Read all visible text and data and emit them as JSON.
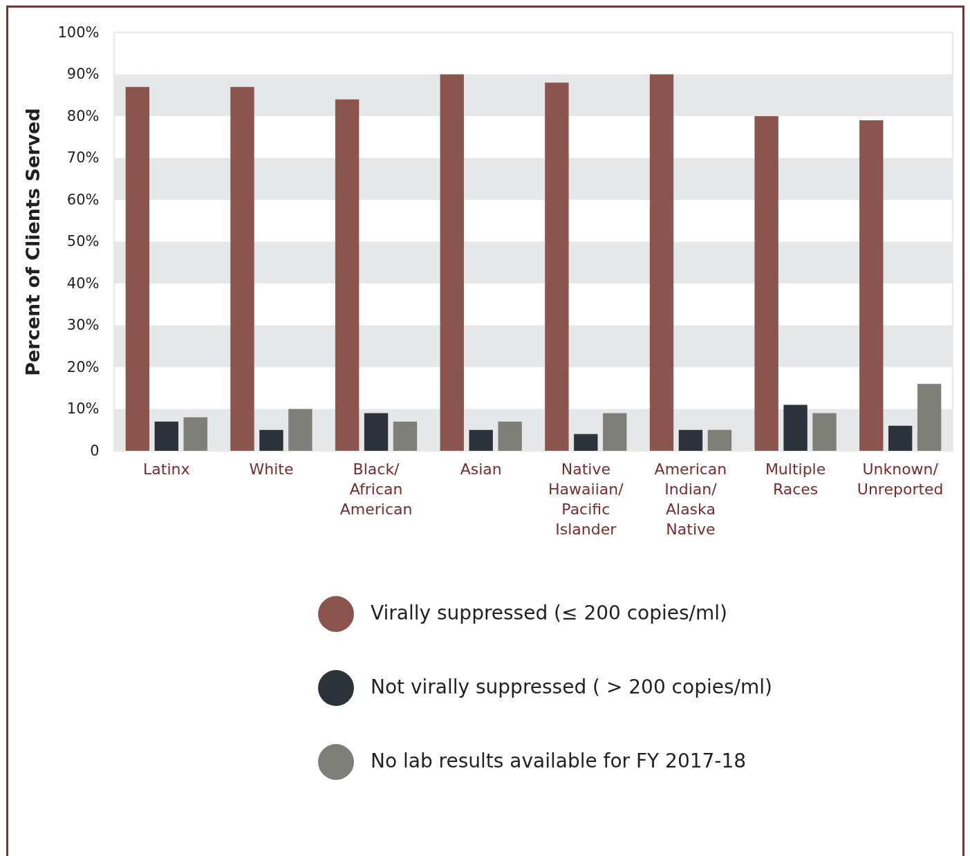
{
  "chart_data": {
    "type": "bar",
    "ylabel": "Percent of Clients Served",
    "categories": [
      "Latinx",
      "White",
      "Black/ African American",
      "Asian",
      "Native Hawaiian/ Pacific Islander",
      "American Indian/ Alaska Native",
      "Multiple Races",
      "Unknown/ Unreported"
    ],
    "series": [
      {
        "name": "Virally suppressed (≤ 200 copies/ml)",
        "color": "#8b554f",
        "values": [
          87,
          87,
          84,
          90,
          88,
          90,
          80,
          79
        ]
      },
      {
        "name": "Not virally suppressed ( > 200 copies/ml)",
        "color": "#2d333b",
        "values": [
          7,
          5,
          9,
          5,
          4,
          5,
          11,
          6
        ]
      },
      {
        "name": "No lab results available for FY 2017-18",
        "color": "#7e7f78",
        "values": [
          8,
          10,
          7,
          7,
          9,
          5,
          9,
          16
        ]
      }
    ],
    "ylim": [
      0,
      100
    ],
    "yticks": [
      0,
      {
        "value": 10,
        "label": "10%"
      },
      {
        "value": 20,
        "label": "20%"
      },
      {
        "value": 30,
        "label": "30%"
      },
      {
        "value": 40,
        "label": "40%"
      },
      {
        "value": 50,
        "label": "50%"
      },
      {
        "value": 60,
        "label": "60%"
      },
      {
        "value": 70,
        "label": "70%"
      },
      {
        "value": 80,
        "label": "80%"
      },
      {
        "value": 90,
        "label": "90%"
      },
      {
        "value": 100,
        "label": "100%"
      }
    ],
    "bands": [
      {
        "axis": "y",
        "from": 0,
        "to": 10,
        "color": "#e6e7e8"
      },
      {
        "axis": "y",
        "from": 20,
        "to": 30,
        "color": "#e6e7e8"
      },
      {
        "axis": "y",
        "from": 40,
        "to": 50,
        "color": "#e6e7e8"
      },
      {
        "axis": "y",
        "from": 60,
        "to": 70,
        "color": "#e6e7e8"
      },
      {
        "axis": "y",
        "from": 80,
        "to": 90,
        "color": "#e6e7e8"
      }
    ],
    "legend": "bottom"
  }
}
